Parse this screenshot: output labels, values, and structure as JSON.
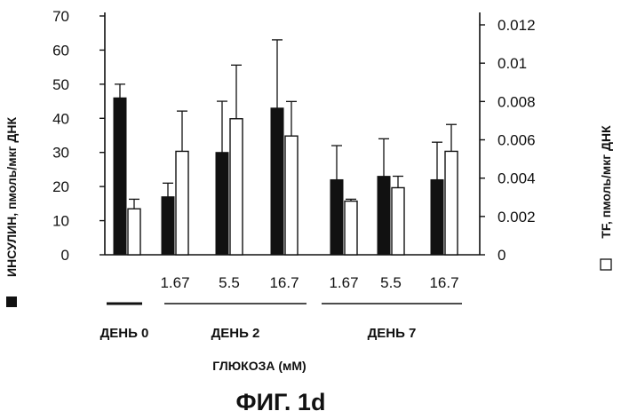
{
  "chart_data": {
    "type": "bar",
    "title": "ФИГ. 1d",
    "xlabel": "ГЛЮКОЗА (мМ)",
    "y_left": {
      "label": "ИНСУЛИН, пмоль/мкг ДНК",
      "ticks": [
        0,
        10,
        20,
        30,
        40,
        50,
        60,
        70
      ],
      "lim": [
        0,
        70
      ]
    },
    "y_right": {
      "label": "TF, пмоль/мкг ДНК",
      "ticks": [
        "0",
        "0.002",
        "0.004",
        "0.006",
        "0.008",
        "0.01",
        "0.012"
      ],
      "lim": [
        0,
        0.012
      ]
    },
    "groups": [
      {
        "day": "ДЕНЬ 0",
        "label": "",
        "insulin": 46,
        "insulin_err": 50,
        "tf": 0.0024,
        "tf_err": 0.0029
      },
      {
        "day": "ДЕНЬ 2",
        "label": "1.67",
        "insulin": 17,
        "insulin_err": 21,
        "tf": 0.0054,
        "tf_err": 0.0075
      },
      {
        "day": "ДЕНЬ 2",
        "label": "5.5",
        "insulin": 30,
        "insulin_err": 45,
        "tf": 0.0071,
        "tf_err": 0.0099
      },
      {
        "day": "ДЕНЬ 2",
        "label": "16.7",
        "insulin": 43,
        "insulin_err": 63,
        "tf": 0.0062,
        "tf_err": 0.008
      },
      {
        "day": "ДЕНЬ 7",
        "label": "1.67",
        "insulin": 22,
        "insulin_err": 32,
        "tf": 0.0028,
        "tf_err": 0.0029
      },
      {
        "day": "ДЕНЬ 7",
        "label": "5.5",
        "insulin": 23,
        "insulin_err": 34,
        "tf": 0.0035,
        "tf_err": 0.0041
      },
      {
        "day": "ДЕНЬ 7",
        "label": "16.7",
        "insulin": 22,
        "insulin_err": 33,
        "tf": 0.0054,
        "tf_err": 0.0068
      }
    ],
    "days": [
      "ДЕНЬ 0",
      "ДЕНЬ 2",
      "ДЕНЬ 7"
    ],
    "series": [
      {
        "name": "ИНСУЛИН",
        "color": "#111111",
        "axis": "left"
      },
      {
        "name": "TF",
        "color": "#ffffff",
        "axis": "right"
      }
    ],
    "grid": false
  }
}
